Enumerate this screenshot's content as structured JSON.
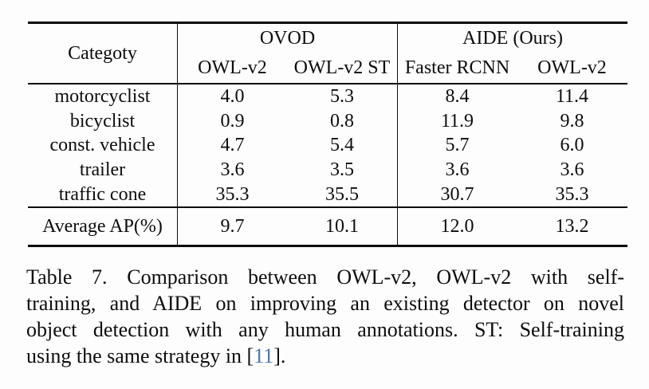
{
  "table": {
    "header": {
      "category": "Categoty",
      "groups": [
        {
          "label": "OVOD"
        },
        {
          "label": "AIDE (Ours)"
        }
      ],
      "subcolumns": [
        "OWL-v2",
        "OWL-v2 ST",
        "Faster RCNN",
        "OWL-v2"
      ]
    },
    "rows": [
      {
        "category": "motorcyclist",
        "values": [
          "4.0",
          "5.3",
          "8.4",
          "11.4"
        ]
      },
      {
        "category": "bicyclist",
        "values": [
          "0.9",
          "0.8",
          "11.9",
          "9.8"
        ]
      },
      {
        "category": "const. vehicle",
        "values": [
          "4.7",
          "5.4",
          "5.7",
          "6.0"
        ]
      },
      {
        "category": "trailer",
        "values": [
          "3.6",
          "3.5",
          "3.6",
          "3.6"
        ]
      },
      {
        "category": "traffic cone",
        "values": [
          "35.3",
          "35.5",
          "30.7",
          "35.3"
        ]
      }
    ],
    "summary": {
      "label": "Average AP(%)",
      "values": [
        "9.7",
        "10.1",
        "12.0",
        "13.2"
      ]
    }
  },
  "caption": {
    "line1": "Table 7.  Comparison between OWL-v2, OWL-v2 with self-",
    "line2": "training, and AIDE on improving an existing detector on novel",
    "line3": "object detection with any human annotations.  ST: Self-training",
    "line4_prefix": "using the same strategy in [",
    "citation_ref": "11",
    "line4_suffix": "]."
  },
  "colors": {
    "text": "#0d0d0d",
    "rule": "#0d0d0d",
    "citation_blue": "#4878b0",
    "background": "#fdfdfd"
  }
}
